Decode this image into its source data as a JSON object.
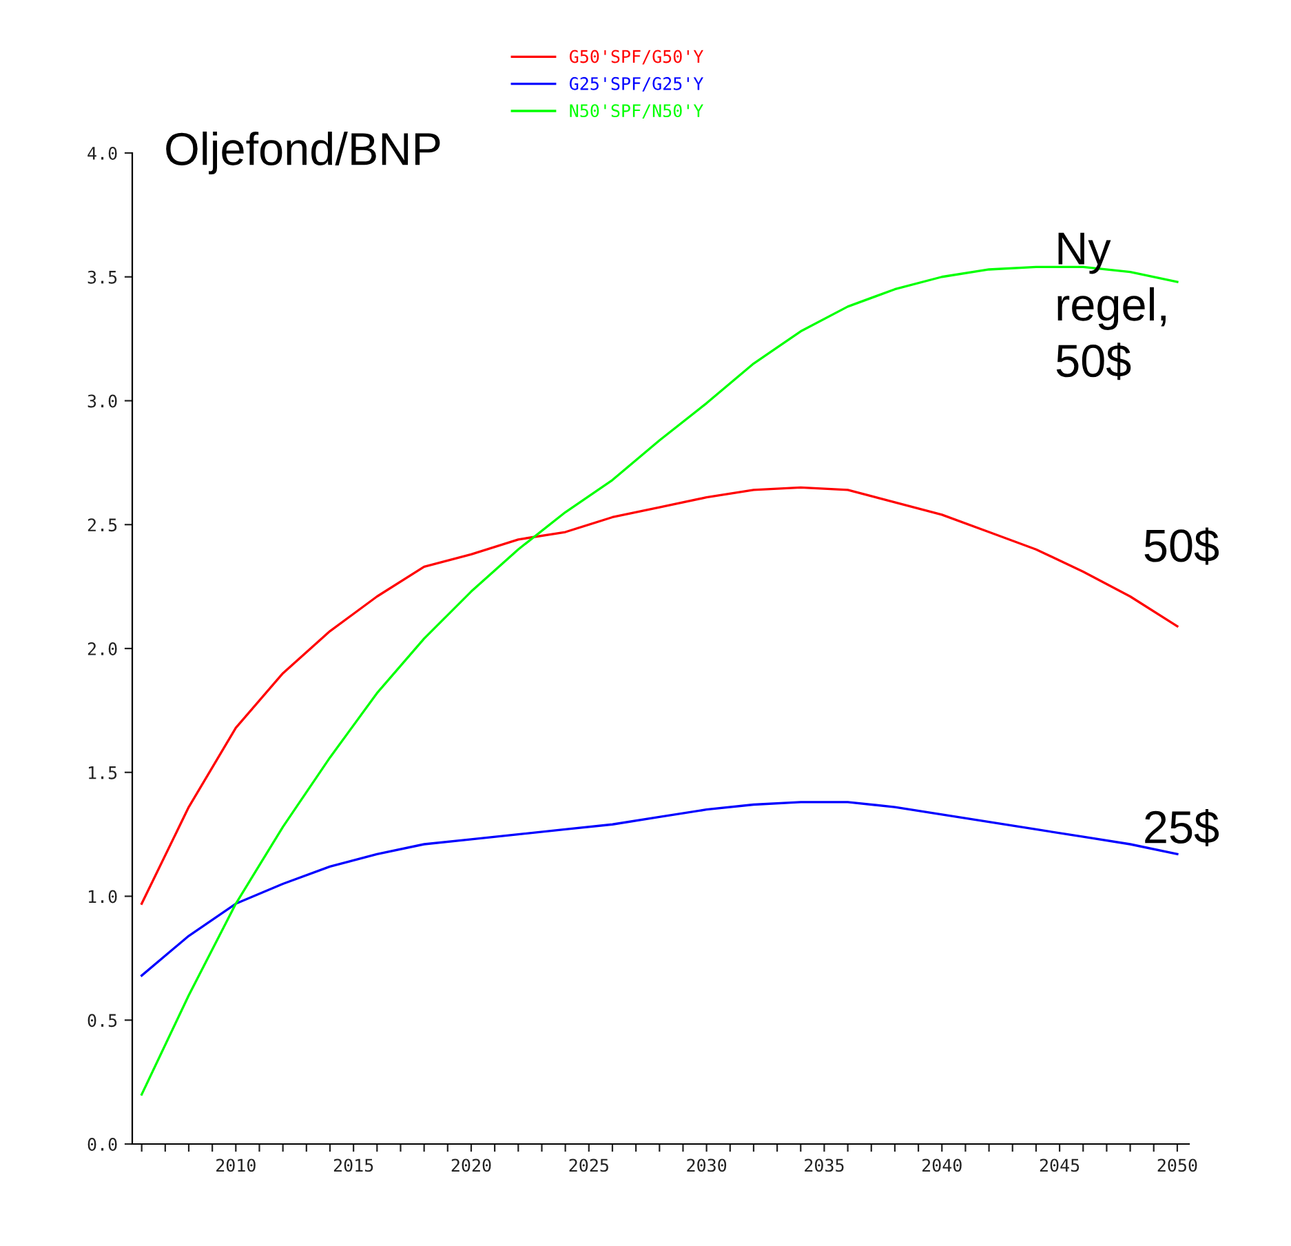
{
  "chart_data": {
    "type": "line",
    "title": "Oljefond/BNP",
    "x": [
      2006,
      2008,
      2010,
      2012,
      2014,
      2016,
      2018,
      2020,
      2022,
      2024,
      2026,
      2028,
      2030,
      2032,
      2034,
      2036,
      2038,
      2040,
      2042,
      2044,
      2046,
      2048,
      2050
    ],
    "series": [
      {
        "name": "G50'SPF/G50'Y",
        "color": "#ff0000",
        "values": [
          0.97,
          1.36,
          1.68,
          1.9,
          2.07,
          2.21,
          2.33,
          2.38,
          2.44,
          2.47,
          2.53,
          2.57,
          2.61,
          2.64,
          2.65,
          2.64,
          2.59,
          2.54,
          2.47,
          2.4,
          2.31,
          2.21,
          2.09
        ]
      },
      {
        "name": "G25'SPF/G25'Y",
        "color": "#0000ff",
        "values": [
          0.68,
          0.84,
          0.97,
          1.05,
          1.12,
          1.17,
          1.21,
          1.23,
          1.25,
          1.27,
          1.29,
          1.32,
          1.35,
          1.37,
          1.38,
          1.38,
          1.36,
          1.33,
          1.3,
          1.27,
          1.24,
          1.21,
          1.17
        ]
      },
      {
        "name": "N50'SPF/N50'Y",
        "color": "#00ff00",
        "values": [
          0.2,
          0.6,
          0.97,
          1.28,
          1.56,
          1.82,
          2.04,
          2.23,
          2.4,
          2.55,
          2.68,
          2.84,
          2.99,
          3.15,
          3.28,
          3.38,
          3.45,
          3.5,
          3.53,
          3.54,
          3.54,
          3.52,
          3.48
        ]
      }
    ],
    "annotations": [
      "50$",
      "25$",
      "Ny\nregel,\n50$"
    ],
    "xlim": [
      2005.6,
      2050.5
    ],
    "xticks": [
      {
        "value": 2006,
        "label": null
      },
      {
        "value": 2007,
        "label": null
      },
      {
        "value": 2008,
        "label": null
      },
      {
        "value": 2009,
        "label": null
      },
      2010,
      {
        "value": 2011,
        "label": null
      },
      {
        "value": 2012,
        "label": null
      },
      {
        "value": 2013,
        "label": null
      },
      {
        "value": 2014,
        "label": null
      },
      2015,
      {
        "value": 2016,
        "label": null
      },
      {
        "value": 2017,
        "label": null
      },
      {
        "value": 2018,
        "label": null
      },
      {
        "value": 2019,
        "label": null
      },
      2020,
      {
        "value": 2021,
        "label": null
      },
      {
        "value": 2022,
        "label": null
      },
      {
        "value": 2023,
        "label": null
      },
      {
        "value": 2024,
        "label": null
      },
      2025,
      {
        "value": 2026,
        "label": null
      },
      {
        "value": 2027,
        "label": null
      },
      {
        "value": 2028,
        "label": null
      },
      {
        "value": 2029,
        "label": null
      },
      2030,
      {
        "value": 2031,
        "label": null
      },
      {
        "value": 2032,
        "label": null
      },
      {
        "value": 2033,
        "label": null
      },
      {
        "value": 2034,
        "label": null
      },
      2035,
      {
        "value": 2036,
        "label": null
      },
      {
        "value": 2037,
        "label": null
      },
      {
        "value": 2038,
        "label": null
      },
      {
        "value": 2039,
        "label": null
      },
      2040,
      {
        "value": 2041,
        "label": null
      },
      {
        "value": 2042,
        "label": null
      },
      {
        "value": 2043,
        "label": null
      },
      {
        "value": 2044,
        "label": null
      },
      2045,
      {
        "value": 2046,
        "label": null
      },
      {
        "value": 2047,
        "label": null
      },
      {
        "value": 2048,
        "label": null
      },
      {
        "value": 2049,
        "label": null
      },
      2050
    ],
    "ylim": [
      0,
      4
    ],
    "yticks": [
      {
        "value": 0,
        "label": "0.0"
      },
      {
        "value": 0.5,
        "label": "0.5"
      },
      {
        "value": 1,
        "label": "1.0"
      },
      {
        "value": 1.5,
        "label": "1.5"
      },
      {
        "value": 2,
        "label": "2.0"
      },
      {
        "value": 2.5,
        "label": "2.5"
      },
      {
        "value": 3,
        "label": "3.0"
      },
      {
        "value": 3.5,
        "label": "3.5"
      },
      {
        "value": 4,
        "label": "4.0"
      }
    ],
    "grid": false,
    "legend": "top",
    "marker": "none",
    "line_style": "solid"
  }
}
